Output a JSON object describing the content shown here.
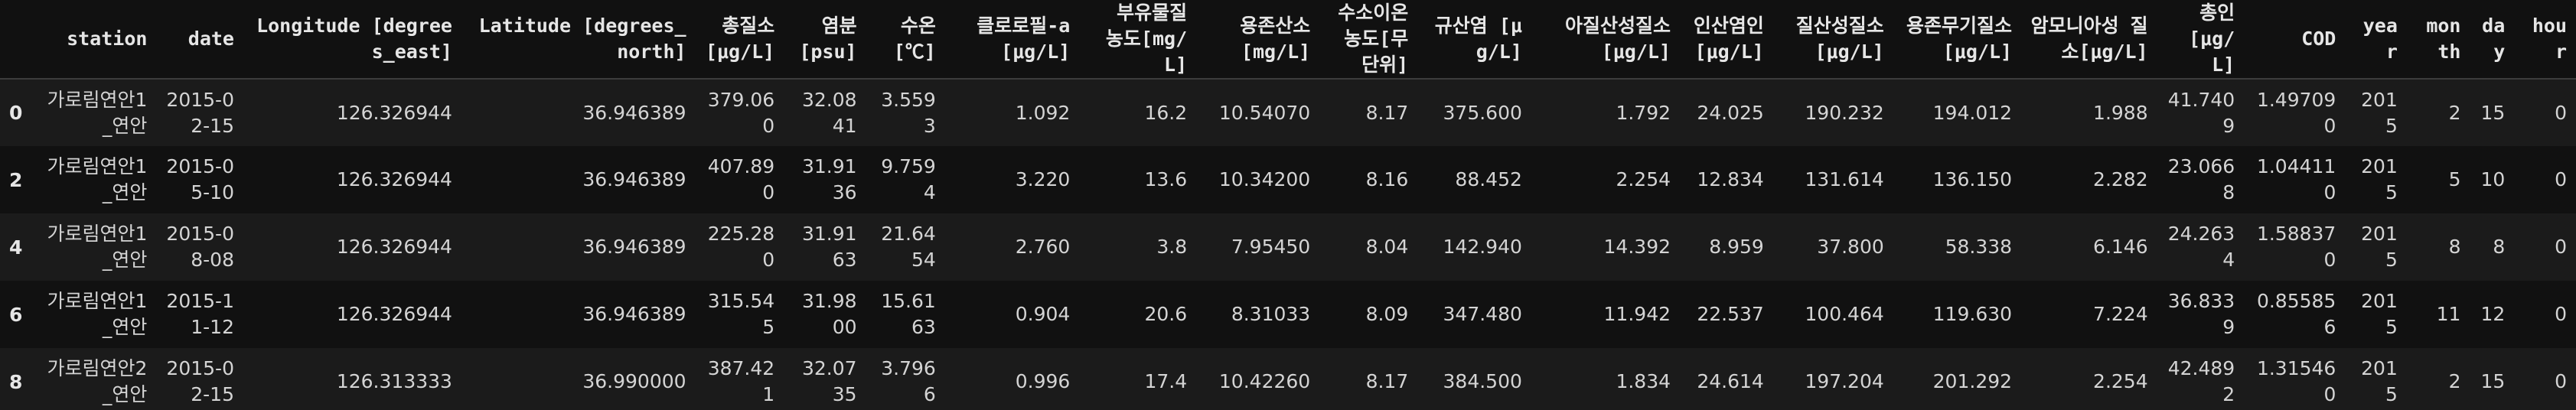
{
  "table": {
    "index_header": "",
    "columns": [
      {
        "key": "station",
        "label": "station"
      },
      {
        "key": "date",
        "label": "date"
      },
      {
        "key": "longitude",
        "label": "Longitude [degrees_east]"
      },
      {
        "key": "latitude",
        "label": "Latitude [degrees_north]"
      },
      {
        "key": "tn",
        "label": "총질소 [μg/L]"
      },
      {
        "key": "salinity",
        "label": "염분 [psu]"
      },
      {
        "key": "temp",
        "label": "수온 [℃]"
      },
      {
        "key": "chla",
        "label": "클로로필-a[μg/L]"
      },
      {
        "key": "ss",
        "label": "부유물질 농도[mg/L]"
      },
      {
        "key": "do",
        "label": "용존산소 [mg/L]"
      },
      {
        "key": "ph",
        "label": "수소이온 농도[무단위]"
      },
      {
        "key": "silicate",
        "label": "규산염 [μg/L]"
      },
      {
        "key": "no2",
        "label": "아질산성질소 [μg/L]"
      },
      {
        "key": "po4",
        "label": "인산염인 [μg/L]"
      },
      {
        "key": "no3",
        "label": "질산성질소 [μg/L]"
      },
      {
        "key": "din",
        "label": "용존무기질소 [μg/L]"
      },
      {
        "key": "nh4",
        "label": "암모니아성 질소[μg/L]"
      },
      {
        "key": "tp",
        "label": "총인 [μg/L]"
      },
      {
        "key": "cod",
        "label": "COD"
      },
      {
        "key": "year",
        "label": "year"
      },
      {
        "key": "month",
        "label": "month"
      },
      {
        "key": "day",
        "label": "day"
      },
      {
        "key": "hour",
        "label": "hour"
      }
    ],
    "rows": [
      {
        "index": "0",
        "cells": [
          "가로림연안1_연안",
          "2015-02-15",
          "126.326944",
          "36.946389",
          "379.060",
          "32.0841",
          "3.5593",
          "1.092",
          "16.2",
          "10.54070",
          "8.17",
          "375.600",
          "1.792",
          "24.025",
          "190.232",
          "194.012",
          "1.988",
          "41.7409",
          "1.497090",
          "2015",
          "2",
          "15",
          "0"
        ]
      },
      {
        "index": "2",
        "cells": [
          "가로림연안1_연안",
          "2015-05-10",
          "126.326944",
          "36.946389",
          "407.890",
          "31.9136",
          "9.7594",
          "3.220",
          "13.6",
          "10.34200",
          "8.16",
          "88.452",
          "2.254",
          "12.834",
          "131.614",
          "136.150",
          "2.282",
          "23.0668",
          "1.044110",
          "2015",
          "5",
          "10",
          "0"
        ]
      },
      {
        "index": "4",
        "cells": [
          "가로림연안1_연안",
          "2015-08-08",
          "126.326944",
          "36.946389",
          "225.280",
          "31.9163",
          "21.6454",
          "2.760",
          "3.8",
          "7.95450",
          "8.04",
          "142.940",
          "14.392",
          "8.959",
          "37.800",
          "58.338",
          "6.146",
          "24.2634",
          "1.588370",
          "2015",
          "8",
          "8",
          "0"
        ]
      },
      {
        "index": "6",
        "cells": [
          "가로림연안1_연안",
          "2015-11-12",
          "126.326944",
          "36.946389",
          "315.545",
          "31.9800",
          "15.6163",
          "0.904",
          "20.6",
          "8.31033",
          "8.09",
          "347.480",
          "11.942",
          "22.537",
          "100.464",
          "119.630",
          "7.224",
          "36.8339",
          "0.855856",
          "2015",
          "11",
          "12",
          "0"
        ]
      },
      {
        "index": "8",
        "cells": [
          "가로림연안2_연안",
          "2015-02-15",
          "126.313333",
          "36.990000",
          "387.421",
          "32.0735",
          "3.7966",
          "0.996",
          "17.4",
          "10.42260",
          "8.17",
          "384.500",
          "1.834",
          "24.614",
          "197.204",
          "201.292",
          "2.254",
          "42.4892",
          "1.315460",
          "2015",
          "2",
          "15",
          "0"
        ]
      }
    ]
  }
}
